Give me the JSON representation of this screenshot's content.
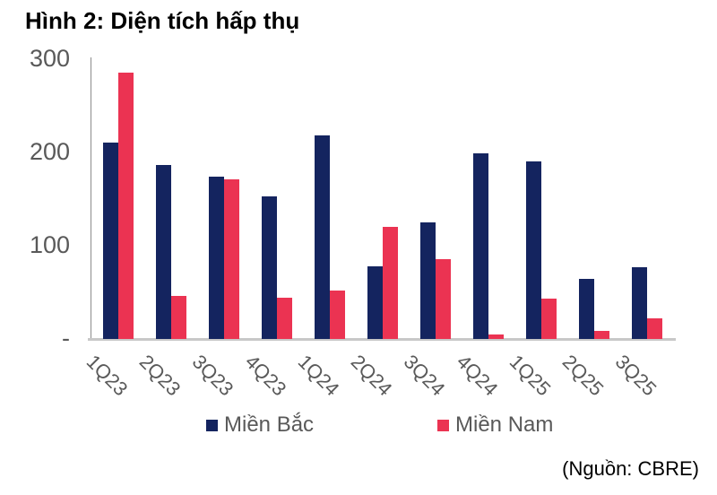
{
  "title": "Hình 2: Diện tích hấp thụ",
  "source": "(Nguồn: CBRE)",
  "colors": {
    "mien_bac": "#14245F",
    "mien_nam": "#EB3352",
    "axis_text": "#595959",
    "axis_line": "#8C8C8C",
    "baseline": "#C8C8C8"
  },
  "chart_data": {
    "type": "bar",
    "title": "Hình 2: Diện tích hấp thụ",
    "categories": [
      "1Q23",
      "2Q23",
      "3Q23",
      "4Q23",
      "1Q24",
      "2Q24",
      "3Q24",
      "4Q24",
      "1Q25",
      "2Q25",
      "3Q25"
    ],
    "series": [
      {
        "name": "Miền Bắc",
        "color": "#14245F",
        "values": [
          211,
          187,
          174,
          153,
          218,
          78,
          125,
          199,
          190,
          64,
          77
        ]
      },
      {
        "name": "Miền Nam",
        "color": "#EB3352",
        "values": [
          286,
          46,
          171,
          44,
          52,
          120,
          86,
          5,
          43,
          9,
          22
        ]
      }
    ],
    "xlabel": "",
    "ylabel": "",
    "ylim": [
      0,
      300
    ],
    "yticks": [
      {
        "value": 0,
        "label": "-"
      },
      {
        "value": 100,
        "label": "100"
      },
      {
        "value": 200,
        "label": "200"
      },
      {
        "value": 300,
        "label": "300"
      }
    ],
    "grid": false,
    "legend_position": "bottom"
  }
}
